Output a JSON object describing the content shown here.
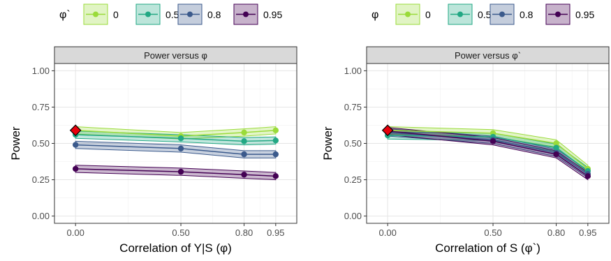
{
  "chart_data": [
    {
      "type": "line",
      "title": "Power versus φ",
      "xlabel": "Correlation of Y|S (φ)",
      "ylabel": "Power",
      "x": [
        0.0,
        0.5,
        0.8,
        0.95
      ],
      "x_tick_labels": [
        "0.00",
        "0.50",
        "0.80",
        "0.95"
      ],
      "ylim": [
        0,
        1
      ],
      "y_ticks": [
        0,
        0.25,
        0.5,
        0.75,
        1.0
      ],
      "y_tick_labels": [
        "0.00",
        "0.25",
        "0.50",
        "0.75",
        "1.00"
      ],
      "grid": true,
      "legend": {
        "title": "φ`",
        "placement": "top"
      },
      "series": [
        {
          "name": "0",
          "color": "#9ADB3A",
          "values": [
            0.59,
            0.55,
            0.575,
            0.59
          ],
          "lower": [
            0.565,
            0.53,
            0.55,
            0.565
          ],
          "upper": [
            0.615,
            0.575,
            0.6,
            0.615
          ]
        },
        {
          "name": "0.5",
          "color": "#22A884",
          "values": [
            0.56,
            0.535,
            0.515,
            0.52
          ],
          "lower": [
            0.535,
            0.51,
            0.49,
            0.495
          ],
          "upper": [
            0.585,
            0.56,
            0.54,
            0.545
          ]
        },
        {
          "name": "0.8",
          "color": "#3B5A8C",
          "values": [
            0.49,
            0.465,
            0.425,
            0.425
          ],
          "lower": [
            0.465,
            0.44,
            0.4,
            0.4
          ],
          "upper": [
            0.515,
            0.49,
            0.45,
            0.45
          ]
        },
        {
          "name": "0.95",
          "color": "#440154",
          "values": [
            0.325,
            0.305,
            0.285,
            0.275
          ],
          "lower": [
            0.3,
            0.28,
            0.26,
            0.25
          ],
          "upper": [
            0.35,
            0.33,
            0.31,
            0.3
          ]
        }
      ],
      "highlight_point": {
        "x": 0.0,
        "y": 0.59,
        "color": "#E8000B"
      }
    },
    {
      "type": "line",
      "title": "Power versus φ`",
      "xlabel": "Correlation of S (φ`)",
      "ylabel": "Power",
      "x": [
        0.0,
        0.5,
        0.8,
        0.95
      ],
      "x_tick_labels": [
        "0.00",
        "0.50",
        "0.80",
        "0.95"
      ],
      "ylim": [
        0,
        1
      ],
      "y_ticks": [
        0,
        0.25,
        0.5,
        0.75,
        1.0
      ],
      "y_tick_labels": [
        "0.00",
        "0.25",
        "0.50",
        "0.75",
        "1.00"
      ],
      "grid": true,
      "legend": {
        "title": "φ",
        "placement": "top"
      },
      "series": [
        {
          "name": "0",
          "color": "#9ADB3A",
          "values": [
            0.59,
            0.57,
            0.5,
            0.325
          ],
          "lower": [
            0.565,
            0.545,
            0.475,
            0.3
          ],
          "upper": [
            0.615,
            0.595,
            0.525,
            0.35
          ]
        },
        {
          "name": "0.5",
          "color": "#22A884",
          "values": [
            0.555,
            0.545,
            0.47,
            0.31
          ],
          "lower": [
            0.53,
            0.52,
            0.445,
            0.285
          ],
          "upper": [
            0.58,
            0.57,
            0.495,
            0.335
          ]
        },
        {
          "name": "0.8",
          "color": "#3B5A8C",
          "values": [
            0.575,
            0.525,
            0.435,
            0.29
          ],
          "lower": [
            0.55,
            0.5,
            0.41,
            0.265
          ],
          "upper": [
            0.6,
            0.55,
            0.46,
            0.315
          ]
        },
        {
          "name": "0.95",
          "color": "#440154",
          "values": [
            0.585,
            0.515,
            0.425,
            0.275
          ],
          "lower": [
            0.56,
            0.49,
            0.4,
            0.25
          ],
          "upper": [
            0.61,
            0.54,
            0.45,
            0.3
          ]
        }
      ],
      "highlight_point": {
        "x": 0.0,
        "y": 0.59,
        "color": "#E8000B"
      }
    }
  ]
}
